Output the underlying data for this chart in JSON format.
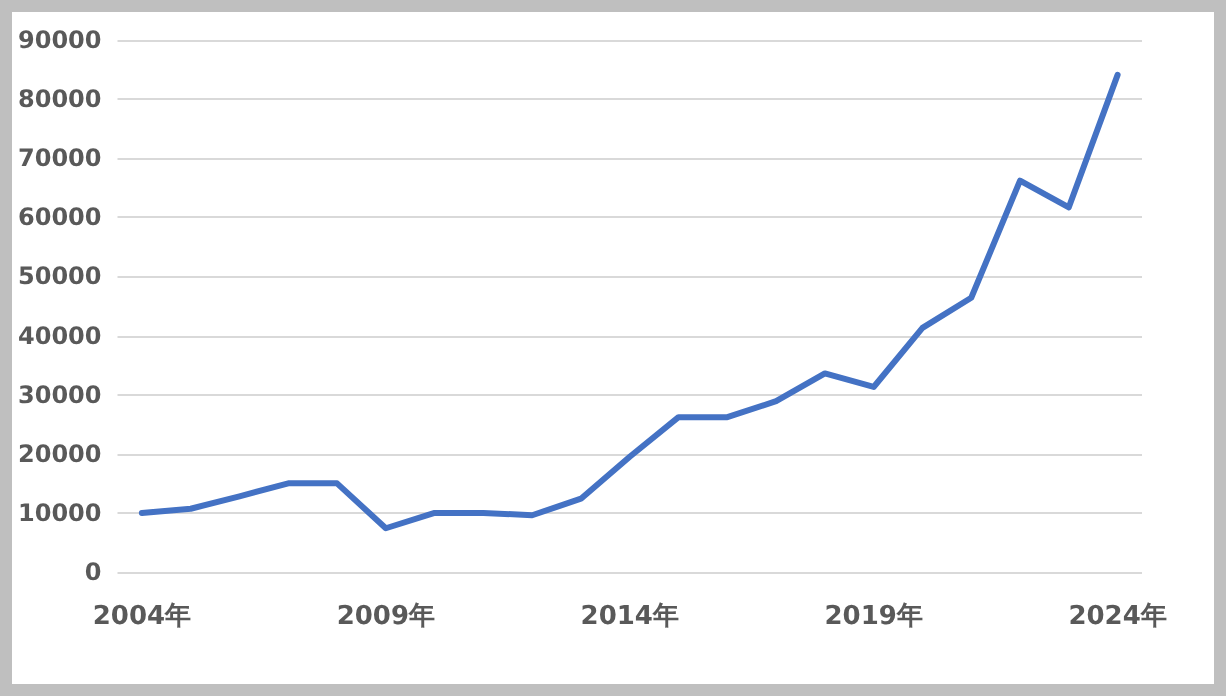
{
  "chart_data": {
    "type": "line",
    "categories": [
      "2004年",
      null,
      null,
      null,
      null,
      "2009年",
      null,
      null,
      null,
      null,
      "2014年",
      null,
      null,
      null,
      null,
      "2019年",
      null,
      null,
      null,
      null,
      "2024年"
    ],
    "series": [
      {
        "color": "#4472c4",
        "values": [
          10000,
          10700,
          12800,
          15000,
          15000,
          7400,
          10000,
          10000,
          9600,
          12400,
          19500,
          26200,
          26200,
          28900,
          33600,
          31300,
          41300,
          46400,
          66200,
          61700,
          84100
        ]
      }
    ],
    "ylim": [
      0,
      90000
    ],
    "yticks": [
      0,
      10000,
      20000,
      30000,
      40000,
      50000,
      60000,
      70000,
      80000,
      90000
    ],
    "grid": "y",
    "marker": "none",
    "line_style": "solid"
  }
}
